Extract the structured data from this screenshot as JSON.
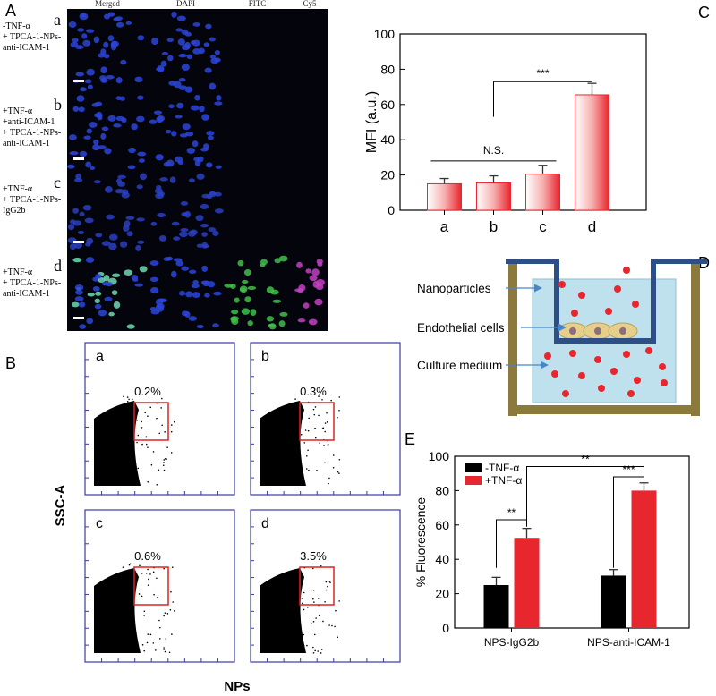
{
  "panel_letters": [
    "A",
    "B",
    "C",
    "D",
    "E"
  ],
  "panel_a": {
    "column_headers": [
      "Merged",
      "DAPI",
      "FITC",
      "Cy5"
    ],
    "rows": [
      {
        "letter": "a",
        "condition": [
          "-TNF-α",
          "+ TPCA-1-NPs-",
          "anti-ICAM-1"
        ]
      },
      {
        "letter": "b",
        "condition": [
          "+TNF-α",
          "+anti-ICAM-1",
          "+ TPCA-1-NPs-",
          "anti-ICAM-1"
        ]
      },
      {
        "letter": "c",
        "condition": [
          "+TNF-α",
          "+ TPCA-1-NPs-",
          "IgG2b"
        ]
      },
      {
        "letter": "d",
        "condition": [
          "+TNF-α",
          "+ TPCA-1-NPs-",
          "anti-ICAM-1"
        ]
      }
    ]
  },
  "panel_b": {
    "y_label": "SSC-A",
    "x_label": "NPs",
    "plots": [
      {
        "letter": "a",
        "percent": "0.2%"
      },
      {
        "letter": "b",
        "percent": "0.3%"
      },
      {
        "letter": "c",
        "percent": "0.6%"
      },
      {
        "letter": "d",
        "percent": "3.5%"
      }
    ]
  },
  "panel_d": {
    "labels": [
      "Nanoparticles",
      "Endothelial cells",
      "Culture medium"
    ]
  },
  "chart_data": [
    {
      "type": "bar",
      "y_label": "MFI (a.u.)",
      "categories": [
        "a",
        "b",
        "c",
        "d"
      ],
      "values": [
        15,
        15.5,
        20.5,
        65.5
      ],
      "errors": [
        3,
        4,
        5,
        6.5
      ],
      "color": "#e8262d",
      "ylim": [
        0,
        100
      ],
      "yticks": [
        0,
        20,
        40,
        60,
        80,
        100
      ],
      "annotations": [
        {
          "text": "N.S.",
          "from": 0,
          "to": 2,
          "y": 28
        },
        {
          "text": "***",
          "from": 1,
          "to": 3,
          "y": 73
        }
      ]
    },
    {
      "type": "grouped_bar",
      "y_label": "% Fluorescence",
      "categories": [
        "NPS-IgG2b",
        "NPS-anti-ICAM-1"
      ],
      "series": [
        {
          "name": "-TNF-α",
          "color": "#000000",
          "values": [
            25,
            30.5
          ],
          "errors": [
            4.5,
            3.5
          ]
        },
        {
          "name": "+TNF-α",
          "color": "#e8262d",
          "values": [
            52.5,
            80
          ],
          "errors": [
            5.5,
            4.5
          ]
        }
      ],
      "ylim": [
        0,
        100
      ],
      "yticks": [
        0,
        20,
        40,
        60,
        80,
        100
      ],
      "legend": "upper-left",
      "annotations": [
        {
          "text": "**",
          "y": 63
        },
        {
          "text": "***",
          "y": 88
        },
        {
          "text": "**",
          "y": 94
        }
      ]
    }
  ]
}
